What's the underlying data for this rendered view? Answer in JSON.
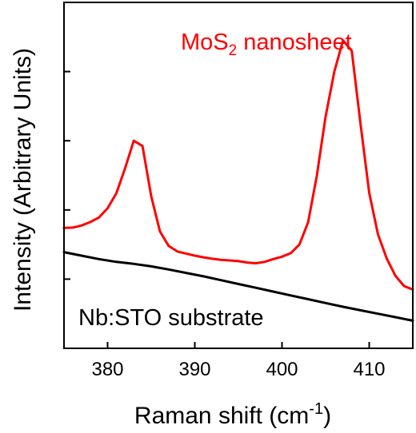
{
  "chart_data": {
    "type": "line",
    "title": "",
    "xlabel": "Raman shift (cm",
    "xlabel_superscript": "-1",
    "xlabel_suffix": ")",
    "ylabel": "Intensity (Arbitrary Units)",
    "xlim": [
      375,
      415
    ],
    "ylim": [
      0,
      100
    ],
    "x_ticks": [
      380,
      390,
      400,
      410
    ],
    "x_tick_labels": [
      "380",
      "390",
      "400",
      "410"
    ],
    "y_ticks": [
      0,
      20,
      40,
      60,
      80,
      100
    ],
    "y_tick_labels_shown": false,
    "grid": false,
    "series": [
      {
        "name": "MoS2 nanosheet",
        "label_main": "MoS",
        "label_sub": "2",
        "label_rest": " nanosheet",
        "color": "#ff0000",
        "x": [
          375,
          376,
          377,
          378,
          379,
          380,
          381,
          382,
          383,
          384,
          385,
          386,
          387,
          388,
          389,
          390,
          391,
          392,
          393,
          394,
          395,
          396,
          397,
          398,
          399,
          400,
          401,
          402,
          403,
          404,
          405,
          406,
          407,
          408,
          409,
          410,
          411,
          412,
          413,
          414,
          415
        ],
        "y": [
          34.8,
          34.9,
          35.5,
          36.5,
          37.8,
          40.5,
          44.8,
          52,
          60,
          58.5,
          44,
          33.8,
          29.6,
          28,
          27.4,
          26.8,
          26.3,
          25.9,
          25.6,
          25.4,
          25.2,
          24.8,
          24.6,
          25,
          25.8,
          26.5,
          27.5,
          30,
          36.5,
          50,
          67,
          80,
          89,
          86,
          65,
          45,
          33,
          26,
          21,
          18,
          17
        ]
      },
      {
        "name": "Nb:STO substrate",
        "color": "#000000",
        "x": [
          375,
          377,
          379,
          381,
          383,
          385,
          387,
          389,
          391,
          393,
          395,
          397,
          399,
          401,
          403,
          405,
          407,
          409,
          411,
          413,
          415
        ],
        "y": [
          27.8,
          26.8,
          25.8,
          25,
          24.4,
          23.7,
          22.8,
          21.8,
          20.8,
          19.7,
          18.6,
          17.5,
          16.4,
          15.3,
          14.2,
          13.1,
          12,
          11,
          10,
          9,
          8
        ]
      }
    ]
  }
}
